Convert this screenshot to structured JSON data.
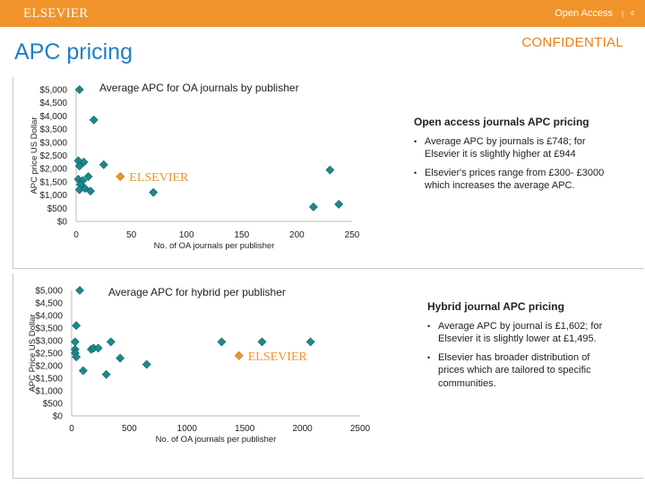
{
  "header": {
    "brand": "ELSEVIER",
    "nav_label": "Open Access",
    "nav_sep": "|",
    "page_number": "6"
  },
  "page_title": "APC pricing",
  "confidential": "CONFIDENTIAL",
  "colors": {
    "topbar": "#f0932b",
    "title_blue": "#1e7fc4",
    "marker_teal": "#1a8a8c",
    "marker_orange": "#f0932b"
  },
  "chart_data": [
    {
      "type": "scatter",
      "title": "Average APC for OA journals by publisher",
      "xlabel": "No. of OA journals per publisher",
      "ylabel": "APC price US Dollar",
      "xlim": [
        0,
        250
      ],
      "ylim": [
        0,
        5000
      ],
      "xticks": [
        0,
        50,
        100,
        150,
        200,
        250
      ],
      "xtick_labels": [
        "0",
        "50",
        "100",
        "150",
        "200",
        "250"
      ],
      "ytick_labels": [
        "$0",
        "$500",
        "$1,000",
        "$1,500",
        "$2,000",
        "$2,500",
        "$3,000",
        "$3,500",
        "$4,000",
        "$4,500",
        "$5,000"
      ],
      "points": [
        [
          3,
          5000
        ],
        [
          16,
          3850
        ],
        [
          2,
          2300
        ],
        [
          7,
          2250
        ],
        [
          3,
          2100
        ],
        [
          25,
          2150
        ],
        [
          11,
          1700
        ],
        [
          2,
          1600
        ],
        [
          6,
          1550
        ],
        [
          4,
          1400
        ],
        [
          3,
          1200
        ],
        [
          8,
          1250
        ],
        [
          13,
          1150
        ],
        [
          70,
          1100
        ],
        [
          230,
          1950
        ],
        [
          215,
          550
        ],
        [
          238,
          650
        ]
      ],
      "highlight": {
        "label": "ELSEVIER",
        "x": 40,
        "y": 1700
      }
    },
    {
      "type": "scatter",
      "title": "Average APC for hybrid per publisher",
      "xlabel": "No. of OA journals per publisher",
      "ylabel": "APC Price US Dollar",
      "xlim": [
        0,
        2500
      ],
      "ylim": [
        0,
        5000
      ],
      "xticks": [
        0,
        500,
        1000,
        1500,
        2000,
        2500
      ],
      "xtick_labels": [
        "0",
        "500",
        "1000",
        "1500",
        "2000",
        "2500"
      ],
      "ytick_labels": [
        "$0",
        "$500",
        "$1,000",
        "$1,500",
        "$2,000",
        "$2,500",
        "$3,000",
        "$3,500",
        "$4,000",
        "$4,500",
        "$5,000"
      ],
      "points": [
        [
          70,
          5000
        ],
        [
          40,
          3600
        ],
        [
          30,
          2950
        ],
        [
          30,
          2650
        ],
        [
          30,
          2500
        ],
        [
          40,
          2350
        ],
        [
          170,
          2650
        ],
        [
          190,
          2700
        ],
        [
          230,
          2700
        ],
        [
          340,
          2950
        ],
        [
          420,
          2300
        ],
        [
          100,
          1800
        ],
        [
          300,
          1650
        ],
        [
          650,
          2050
        ],
        [
          1300,
          2950
        ],
        [
          1650,
          2950
        ],
        [
          2070,
          2950
        ]
      ],
      "highlight": {
        "label": "ELSEVIER",
        "x": 1450,
        "y": 2400
      }
    }
  ],
  "oa_summary": {
    "heading": "Open access journals APC pricing",
    "bullets": [
      "Average APC by journals is £748; for Elsevier it is slightly higher at £944",
      "Elsevier's prices range from £300- £3000 which increases the average APC."
    ]
  },
  "hybrid_summary": {
    "heading": "Hybrid journal APC pricing",
    "bullets": [
      "Average APC by journal is £1,602; for Elsevier it is slightly lower at £1,495.",
      "Elsevier has broader distribution of prices which are tailored to specific communities."
    ]
  }
}
